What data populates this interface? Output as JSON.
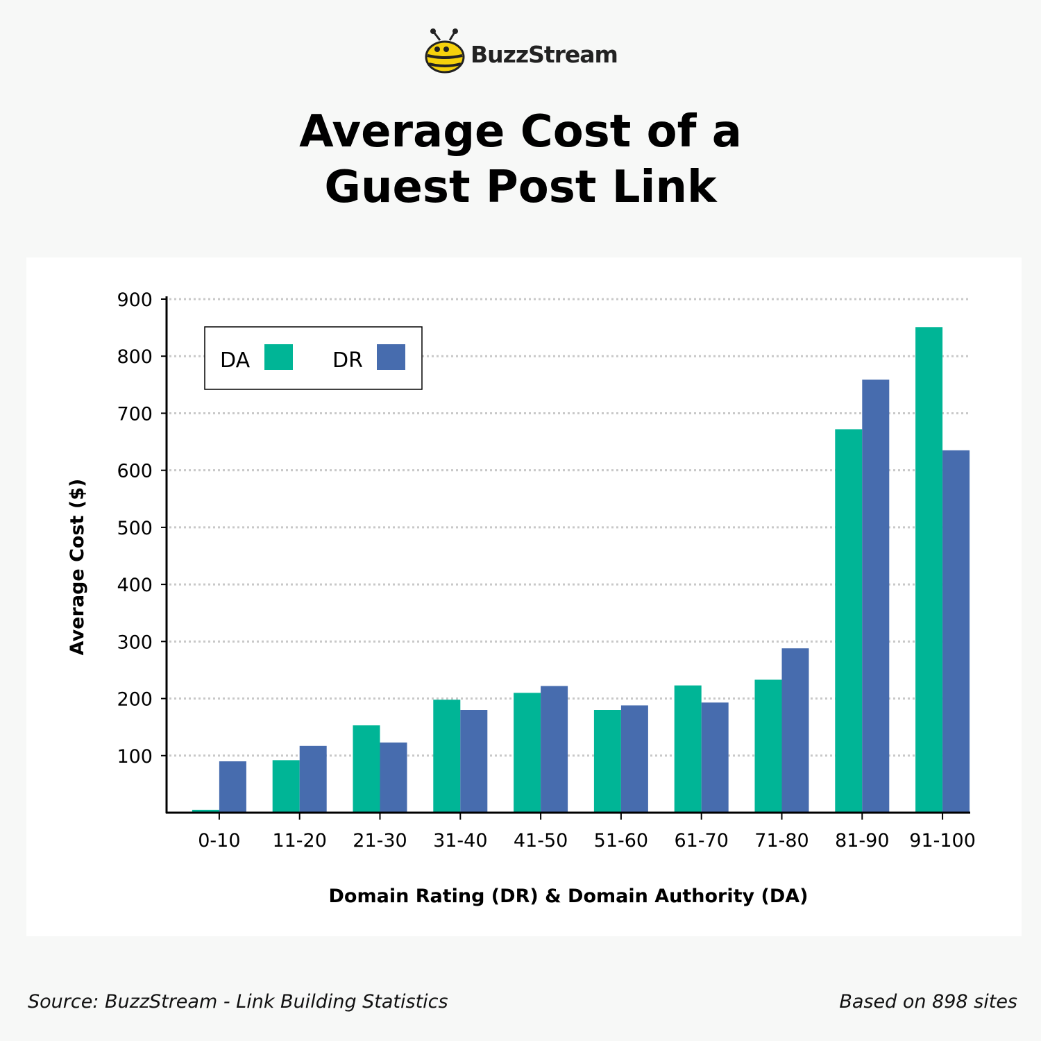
{
  "brand": {
    "name": "BuzzStream",
    "logo_icon": "bee-icon"
  },
  "title_lines": [
    "Average Cost of a",
    "Guest Post Link"
  ],
  "colors": {
    "da": "#00b596",
    "dr": "#476cae",
    "grid": "#c8c8c8",
    "panel": "#ffffff",
    "background": "#f7f8f7"
  },
  "chart_data": {
    "type": "bar",
    "categories": [
      "0-10",
      "11-20",
      "21-30",
      "31-40",
      "41-50",
      "51-60",
      "61-70",
      "71-80",
      "81-90",
      "91-100"
    ],
    "series": [
      {
        "name": "DA",
        "values": [
          5,
          92,
          153,
          198,
          210,
          180,
          223,
          233,
          672,
          851
        ]
      },
      {
        "name": "DR",
        "values": [
          90,
          117,
          123,
          180,
          222,
          188,
          193,
          288,
          759,
          635
        ]
      }
    ],
    "xlabel": "Domain Rating (DR) & Domain Authority (DA)",
    "ylabel": "Average Cost ($)",
    "ylim": [
      0,
      900
    ],
    "yticks": [
      100,
      200,
      300,
      400,
      500,
      600,
      700,
      800,
      900
    ],
    "grid": true,
    "legend_position": "top-left"
  },
  "footer": {
    "source": "Source: BuzzStream - Link Building Statistics",
    "note": "Based on 898 sites"
  }
}
